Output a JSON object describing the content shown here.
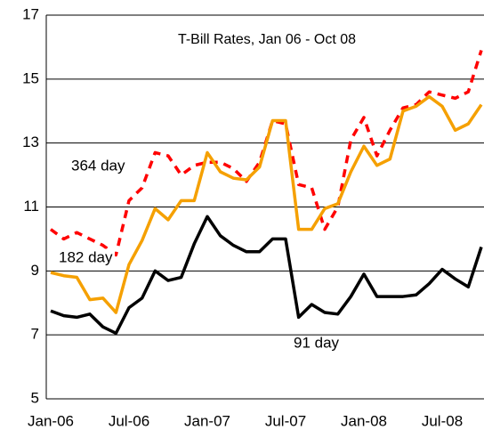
{
  "chart_data": {
    "type": "line",
    "title": "T-Bill Rates, Jan 06 - Oct 08",
    "categories": [
      "Jan-06",
      null,
      null,
      null,
      null,
      null,
      "Jul-06",
      null,
      null,
      null,
      null,
      null,
      "Jan-07",
      null,
      null,
      null,
      null,
      null,
      "Jul-07",
      null,
      null,
      null,
      null,
      null,
      "Jan-08",
      null,
      null,
      null,
      null,
      null,
      "Jul-08",
      null,
      null,
      null
    ],
    "series": [
      {
        "name": "364 day",
        "color": "#ff0000",
        "dashed": true,
        "values": [
          10.3,
          10.0,
          10.2,
          10.0,
          9.8,
          9.5,
          11.2,
          11.6,
          12.7,
          12.6,
          12.0,
          12.3,
          12.4,
          12.4,
          12.2,
          11.8,
          12.4,
          13.7,
          13.6,
          11.7,
          11.6,
          10.3,
          11.0,
          13.1,
          13.8,
          12.6,
          13.4,
          14.1,
          14.2,
          14.6,
          14.5,
          14.4,
          14.6,
          15.9
        ]
      },
      {
        "name": "182 day",
        "color": "#f5a000",
        "dashed": false,
        "values": [
          8.95,
          8.85,
          8.8,
          8.1,
          8.15,
          7.7,
          9.2,
          9.95,
          10.95,
          10.6,
          11.2,
          11.2,
          12.7,
          12.1,
          11.9,
          11.85,
          12.25,
          13.7,
          13.7,
          10.3,
          10.3,
          10.95,
          11.1,
          12.1,
          12.9,
          12.3,
          12.5,
          14.0,
          14.15,
          14.45,
          14.15,
          13.4,
          13.6,
          14.2
        ]
      },
      {
        "name": "91 day",
        "color": "#000000",
        "dashed": false,
        "values": [
          7.75,
          7.6,
          7.55,
          7.65,
          7.25,
          7.05,
          7.85,
          8.15,
          9.0,
          8.7,
          8.8,
          9.85,
          10.7,
          10.1,
          9.8,
          9.6,
          9.6,
          10.0,
          10.0,
          7.55,
          7.95,
          7.7,
          7.65,
          8.2,
          8.9,
          8.2,
          8.2,
          8.2,
          8.25,
          8.6,
          9.05,
          8.75,
          8.5,
          9.75
        ]
      }
    ],
    "ylim": [
      5,
      17
    ],
    "yticks": [
      5,
      7,
      9,
      11,
      13,
      15,
      17
    ],
    "grid": true
  }
}
